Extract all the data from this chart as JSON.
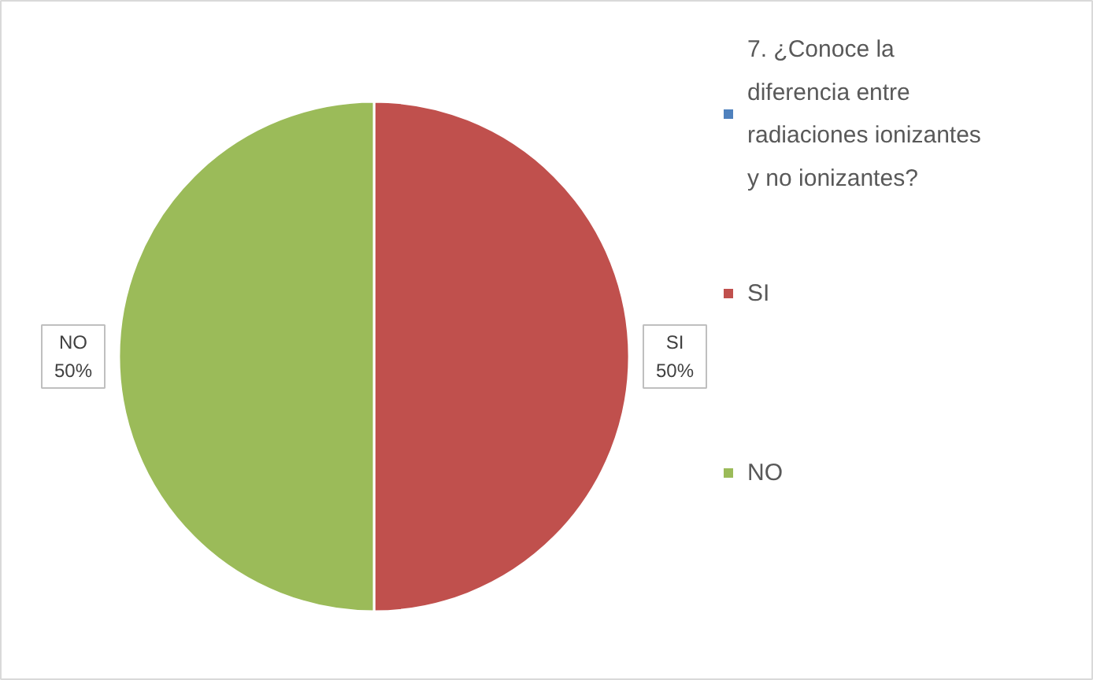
{
  "chart_data": {
    "type": "pie",
    "categories": [
      "7. ¿Conoce la diferencia entre radiaciones ionizantes y no ionizantes?",
      "SI",
      "NO"
    ],
    "values": [
      0,
      50,
      50
    ],
    "colors": [
      "#4f81bd",
      "#c0504d",
      "#9bbb59"
    ],
    "value_labels": [
      null,
      "SI\n50%",
      "NO\n50%"
    ],
    "legend": "right"
  }
}
